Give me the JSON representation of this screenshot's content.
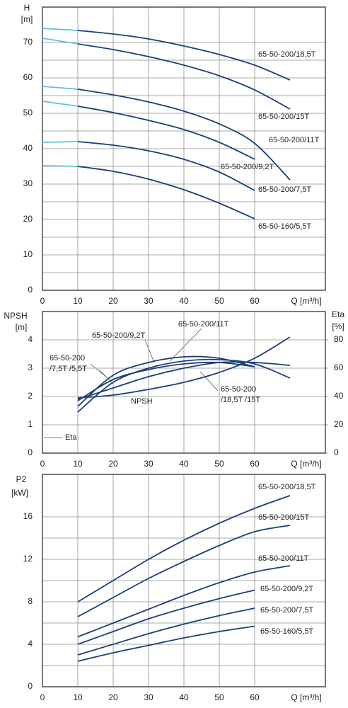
{
  "chart_data": [
    {
      "type": "line",
      "y_label": "H",
      "y_unit": "[m]",
      "x_label": "Q [m³/h]",
      "xlim": [
        0,
        80
      ],
      "xticks": [
        0,
        10,
        20,
        30,
        40,
        50,
        60
      ],
      "ylim": [
        0,
        80
      ],
      "yticks": [
        0,
        10,
        20,
        30,
        40,
        50,
        60,
        70
      ],
      "grid": true,
      "minor_grid": true,
      "low_flow_color": "#5fc0e0",
      "series": [
        {
          "name": "65-50-200/18,5T",
          "color": "#1d3f78",
          "x": [
            0,
            10,
            20,
            30,
            40,
            50,
            60,
            70
          ],
          "values": [
            74,
            73.4,
            72.4,
            71,
            69,
            66.6,
            63.6,
            59.4
          ]
        },
        {
          "name": "65-50-200/15T",
          "color": "#1d3f78",
          "x": [
            0,
            10,
            20,
            30,
            40,
            50,
            60,
            70
          ],
          "values": [
            71.2,
            69.6,
            68,
            66,
            63.6,
            60.6,
            56.6,
            51.2
          ]
        },
        {
          "name": "65-50-200/11T",
          "color": "#1d3f78",
          "x": [
            0,
            10,
            20,
            30,
            40,
            50,
            60,
            70
          ],
          "values": [
            57.6,
            56.8,
            55.2,
            53.2,
            50.6,
            47,
            41.5,
            31.2
          ]
        },
        {
          "name": "65-50-200/9,2T",
          "color": "#1d3f78",
          "x": [
            0,
            10,
            20,
            30,
            40,
            50,
            60
          ],
          "values": [
            53.4,
            52,
            50.2,
            48,
            45.4,
            41.8,
            37
          ]
        },
        {
          "name": "65-50-200/7,5T",
          "color": "#1d3f78",
          "x": [
            0,
            10,
            20,
            30,
            40,
            50,
            60
          ],
          "values": [
            41.8,
            42,
            41,
            39.4,
            37,
            33.4,
            28.2
          ]
        },
        {
          "name": "65-50-160/5,5T",
          "color": "#1d3f78",
          "x": [
            0,
            10,
            20,
            30,
            40,
            50,
            60
          ],
          "values": [
            35.2,
            35,
            33.6,
            31.4,
            28.4,
            24.6,
            20.2
          ]
        }
      ]
    },
    {
      "type": "line",
      "y_label": "NPSH",
      "y_unit": "[m]",
      "y2_label": "Eta",
      "y2_unit": "[%]",
      "x_label": "Q [m³/h]",
      "xlim": [
        0,
        80
      ],
      "xticks": [
        0,
        10,
        20,
        30,
        40,
        50,
        60
      ],
      "ylim": [
        0,
        5
      ],
      "yticks": [
        0,
        1,
        2,
        3,
        4
      ],
      "y2lim": [
        0,
        100
      ],
      "y2ticks": [
        0,
        20,
        40,
        60,
        80
      ],
      "grid": true,
      "minor_grid": false,
      "series": [
        {
          "name": "NPSH",
          "color": "#1d3f78",
          "x": [
            10,
            20,
            30,
            40,
            50,
            60,
            70
          ],
          "values": [
            1.95,
            2.05,
            2.25,
            2.5,
            2.85,
            3.35,
            4.1
          ]
        },
        {
          "color": "#1d3f78",
          "axis": "y2",
          "x": [
            10,
            20,
            30,
            40,
            50,
            60
          ],
          "values": [
            33,
            55,
            64,
            68,
            67,
            61
          ]
        },
        {
          "color": "#1d3f78",
          "axis": "y2",
          "x": [
            10,
            20,
            30,
            40,
            50,
            60,
            70
          ],
          "values": [
            29,
            50,
            60,
            65,
            66,
            63,
            53
          ]
        },
        {
          "color": "#1d3f78",
          "axis": "y2",
          "x": [
            10,
            20,
            30,
            40,
            50,
            60
          ],
          "values": [
            37,
            52,
            59,
            63,
            64,
            61
          ]
        },
        {
          "color": "#1d3f78",
          "axis": "y2",
          "x": [
            10,
            20,
            30,
            40,
            50,
            60,
            70
          ],
          "values": [
            38,
            46,
            54,
            60,
            64,
            64,
            62
          ]
        }
      ],
      "annotations": [
        "65-50-200/11T",
        "65-50-200/9,2T",
        "65-50-200",
        "/7,5T /5,5T",
        "65-50-200",
        "/18,5T /15T",
        "Eta"
      ]
    },
    {
      "type": "line",
      "y_label": "P2",
      "y_unit": "[kW]",
      "x_label": "Q [m³/h]",
      "xlim": [
        0,
        80
      ],
      "xticks": [
        0,
        10,
        20,
        30,
        40,
        50,
        60
      ],
      "ylim": [
        0,
        20
      ],
      "yticks": [
        0,
        4,
        8,
        12,
        16
      ],
      "grid": true,
      "minor_grid": true,
      "series": [
        {
          "name": "65-50-200/18,5T",
          "color": "#1d3f78",
          "x": [
            10,
            20,
            30,
            40,
            50,
            60,
            70
          ],
          "values": [
            8,
            10,
            12,
            13.8,
            15.4,
            16.8,
            18
          ]
        },
        {
          "name": "65-50-200/15T",
          "color": "#1d3f78",
          "x": [
            10,
            20,
            30,
            40,
            50,
            60,
            70
          ],
          "values": [
            6.6,
            8.4,
            10.2,
            11.8,
            13.3,
            14.6,
            15.2
          ]
        },
        {
          "name": "65-50-200/11T",
          "color": "#1d3f78",
          "x": [
            10,
            20,
            30,
            40,
            50,
            60,
            70
          ],
          "values": [
            4.7,
            6,
            7.3,
            8.6,
            9.8,
            10.8,
            11.4
          ]
        },
        {
          "name": "65-50-200/9,2T",
          "color": "#1d3f78",
          "x": [
            10,
            20,
            30,
            40,
            50,
            60
          ],
          "values": [
            4,
            5.2,
            6.4,
            7.4,
            8.3,
            9.1
          ]
        },
        {
          "name": "65-50-200/7,5T",
          "color": "#1d3f78",
          "x": [
            10,
            20,
            30,
            40,
            50,
            60
          ],
          "values": [
            3,
            4,
            5,
            5.9,
            6.7,
            7.4
          ]
        },
        {
          "name": "65-50-160/5,5T",
          "color": "#1d3f78",
          "x": [
            10,
            20,
            30,
            40,
            50,
            60
          ],
          "values": [
            2.4,
            3.2,
            3.9,
            4.6,
            5.2,
            5.7
          ]
        }
      ]
    }
  ]
}
